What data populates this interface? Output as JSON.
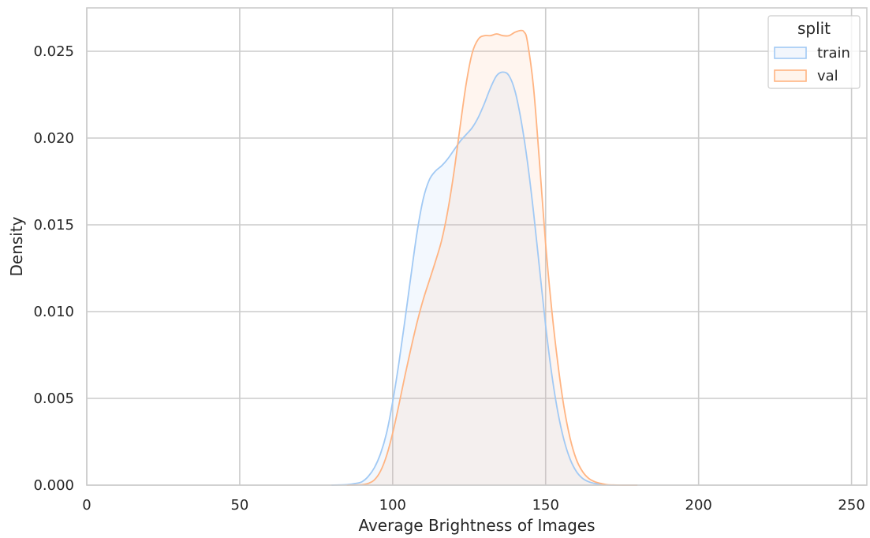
{
  "chart_data": {
    "type": "area",
    "title": "",
    "xlabel": "Average Brightness of Images",
    "ylabel": "Density",
    "xlim": [
      0,
      255
    ],
    "ylim": [
      0,
      0.0275
    ],
    "xticks": [
      0,
      50,
      100,
      150,
      200,
      250
    ],
    "yticks": [
      0.0,
      0.005,
      0.01,
      0.015,
      0.02,
      0.025
    ],
    "xtick_labels": [
      "0",
      "50",
      "100",
      "150",
      "200",
      "250"
    ],
    "ytick_labels": [
      "0.000",
      "0.005",
      "0.010",
      "0.015",
      "0.020",
      "0.025"
    ],
    "grid": true,
    "legend": {
      "title": "split",
      "placement": "top-right",
      "entries": [
        "train",
        "val"
      ]
    },
    "series": [
      {
        "name": "train",
        "color": "#a1c9f4",
        "fill": "#f2f6fc",
        "x": [
          80,
          85,
          88,
          90,
          92,
          94,
          96,
          98,
          100,
          102,
          104,
          106,
          108,
          110,
          112,
          114,
          116,
          118,
          120,
          122,
          124,
          126,
          128,
          130,
          132,
          134,
          136,
          138,
          140,
          142,
          144,
          146,
          148,
          150,
          152,
          154,
          156,
          158,
          160,
          162,
          164,
          166,
          168,
          170,
          172,
          175,
          180
        ],
        "y": [
          0.0,
          3e-05,
          0.0001,
          0.0002,
          0.0005,
          0.001,
          0.0018,
          0.003,
          0.0048,
          0.007,
          0.0095,
          0.0121,
          0.0146,
          0.0165,
          0.0176,
          0.0181,
          0.0184,
          0.0188,
          0.0193,
          0.0198,
          0.0202,
          0.0206,
          0.0212,
          0.022,
          0.0229,
          0.0236,
          0.0238,
          0.0236,
          0.0227,
          0.021,
          0.0187,
          0.0158,
          0.0125,
          0.0092,
          0.0064,
          0.0042,
          0.0026,
          0.0015,
          0.0008,
          0.0004,
          0.0002,
          0.0001,
          4e-05,
          1e-05,
          0.0,
          0.0,
          0.0
        ]
      },
      {
        "name": "val",
        "color": "#ffb482",
        "fill": "#fff4ec",
        "x": [
          85,
          90,
          92,
          94,
          96,
          98,
          100,
          102,
          104,
          106,
          108,
          110,
          112,
          114,
          116,
          118,
          120,
          122,
          124,
          126,
          128,
          130,
          132,
          134,
          136,
          138,
          140,
          142,
          143,
          144,
          146,
          148,
          150,
          152,
          154,
          156,
          158,
          160,
          162,
          164,
          166,
          168,
          170,
          172,
          175,
          180
        ],
        "y": [
          0.0,
          3e-05,
          0.0001,
          0.0003,
          0.0008,
          0.0017,
          0.003,
          0.0046,
          0.0063,
          0.0079,
          0.0094,
          0.0107,
          0.0118,
          0.0129,
          0.0141,
          0.0158,
          0.018,
          0.0206,
          0.0231,
          0.0249,
          0.0257,
          0.0259,
          0.0259,
          0.026,
          0.0259,
          0.0259,
          0.0261,
          0.0262,
          0.0261,
          0.0256,
          0.023,
          0.0186,
          0.0139,
          0.0101,
          0.007,
          0.0045,
          0.0027,
          0.0015,
          0.0008,
          0.0004,
          0.0002,
          0.0001,
          3e-05,
          1e-05,
          0.0,
          0.0
        ]
      }
    ]
  }
}
